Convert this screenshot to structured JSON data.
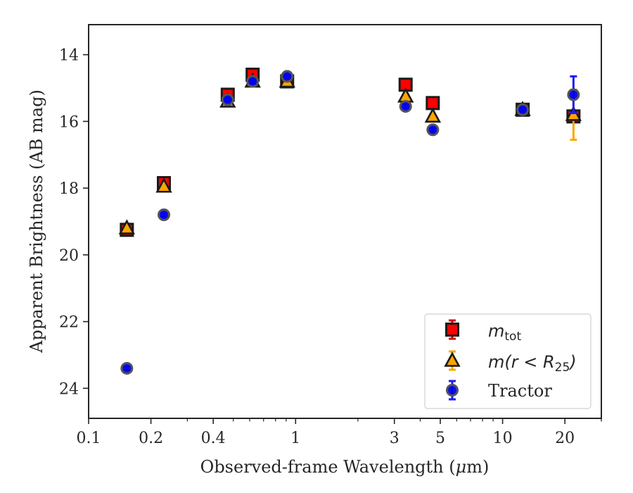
{
  "chart_data": {
    "type": "scatter",
    "xlabel_main": "Observed-frame Wavelength (",
    "xlabel_mu": "μ",
    "xlabel_end": "m)",
    "ylabel": "Apparent Brightness (AB mag)",
    "xscale": "log",
    "xlim": [
      0.1,
      30
    ],
    "ylim": [
      24.9,
      13.1
    ],
    "y_inverted": true,
    "grid": false,
    "legend_position": "lower-right",
    "x_ticks": [
      {
        "value": 0.1,
        "label": "0.1"
      },
      {
        "value": 0.2,
        "label": "0.2"
      },
      {
        "value": 0.4,
        "label": "0.4"
      },
      {
        "value": 1,
        "label": "1"
      },
      {
        "value": 3,
        "label": "3"
      },
      {
        "value": 5,
        "label": "5"
      },
      {
        "value": 10,
        "label": "10"
      },
      {
        "value": 20,
        "label": "20"
      }
    ],
    "y_ticks": [
      {
        "value": 14,
        "label": "14"
      },
      {
        "value": 16,
        "label": "16"
      },
      {
        "value": 18,
        "label": "18"
      },
      {
        "value": 20,
        "label": "20"
      },
      {
        "value": 22,
        "label": "22"
      },
      {
        "value": 24,
        "label": "24"
      }
    ],
    "series": [
      {
        "name": "m_tot",
        "legend_main": "m",
        "legend_sub": "tot",
        "marker": "square",
        "color": "#ff0000",
        "ecolor": "#dd0000",
        "points": [
          {
            "x": 0.153,
            "y": 19.25,
            "err": 0.05
          },
          {
            "x": 0.231,
            "y": 17.85,
            "err": 0.05
          },
          {
            "x": 0.47,
            "y": 15.2,
            "err": 0.05
          },
          {
            "x": 0.62,
            "y": 14.6,
            "err": 0.05
          },
          {
            "x": 0.91,
            "y": 14.8,
            "err": 0.05
          },
          {
            "x": 3.4,
            "y": 14.9,
            "err": 0.05
          },
          {
            "x": 4.6,
            "y": 15.45,
            "err": 0.05
          },
          {
            "x": 12.5,
            "y": 15.65,
            "err": 0.05
          },
          {
            "x": 22.0,
            "y": 15.85,
            "err": 0.08
          }
        ]
      },
      {
        "name": "m(r<R25)",
        "legend_main": "m(r < R",
        "legend_sub": "25",
        "legend_end": ")",
        "marker": "triangle",
        "color": "#ffa500",
        "ecolor": "#ffa500",
        "points": [
          {
            "x": 0.153,
            "y": 19.2,
            "err": 0.05
          },
          {
            "x": 0.231,
            "y": 17.95,
            "err": 0.05
          },
          {
            "x": 0.47,
            "y": 15.4,
            "err": 0.05
          },
          {
            "x": 0.62,
            "y": 14.8,
            "err": 0.05
          },
          {
            "x": 0.91,
            "y": 14.8,
            "err": 0.05
          },
          {
            "x": 3.4,
            "y": 15.25,
            "err": 0.05
          },
          {
            "x": 4.6,
            "y": 15.85,
            "err": 0.05
          },
          {
            "x": 12.5,
            "y": 15.65,
            "err": 0.05
          },
          {
            "x": 22.0,
            "y": 15.8,
            "err": 0.75
          }
        ]
      },
      {
        "name": "Tractor",
        "legend_main": "Tractor",
        "marker": "circle",
        "color": "#0000ee",
        "ecolor": "#1a1aff",
        "points": [
          {
            "x": 0.153,
            "y": 23.4,
            "err": 0.05
          },
          {
            "x": 0.231,
            "y": 18.8,
            "err": 0.05
          },
          {
            "x": 0.47,
            "y": 15.35,
            "err": 0.05
          },
          {
            "x": 0.62,
            "y": 14.8,
            "err": 0.05
          },
          {
            "x": 0.91,
            "y": 14.65,
            "err": 0.05
          },
          {
            "x": 3.4,
            "y": 15.55,
            "err": 0.05
          },
          {
            "x": 4.6,
            "y": 16.25,
            "err": 0.05
          },
          {
            "x": 12.5,
            "y": 15.65,
            "err": 0.05
          },
          {
            "x": 22.0,
            "y": 15.2,
            "err": 0.55
          }
        ]
      }
    ]
  }
}
